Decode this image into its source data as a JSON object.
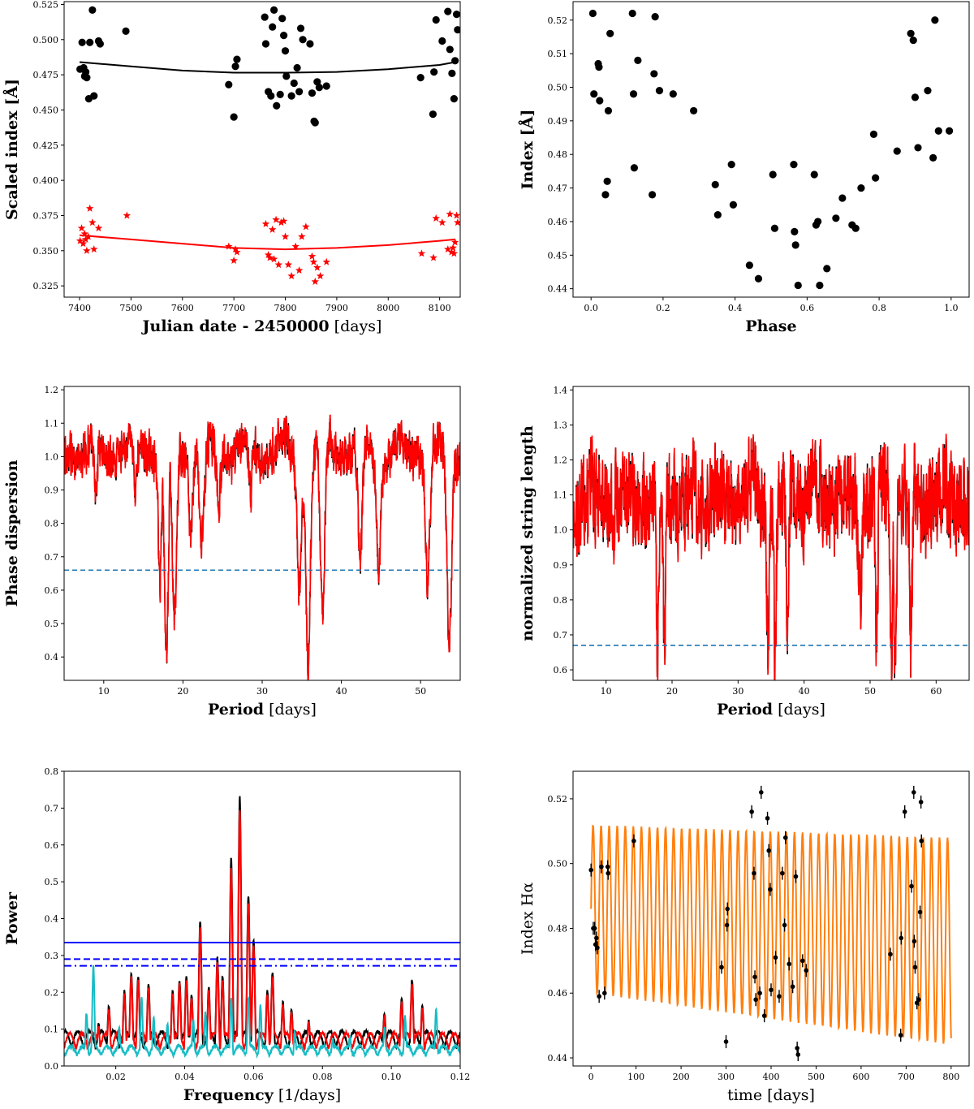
{
  "chart_data": [
    {
      "id": "p1",
      "type": "scatter",
      "xlabel_bold": "Julian date - 2450000",
      "xlabel_unit": "[days]",
      "ylabel": "Scaled index [Å]",
      "xlim": [
        7370,
        8140
      ],
      "ylim": [
        0.317,
        0.527
      ],
      "xticks": [
        7400,
        7500,
        7600,
        7700,
        7800,
        7900,
        8000,
        8100
      ],
      "yticks": [
        0.325,
        0.35,
        0.375,
        0.4,
        0.425,
        0.45,
        0.475,
        0.5,
        0.525
      ],
      "series": [
        {
          "name": "index_black",
          "color": "#000000",
          "marker": "circle",
          "x": [
            7401,
            7405,
            7408,
            7410,
            7412,
            7414,
            7418,
            7420,
            7425,
            7428,
            7437,
            7440,
            7490,
            7690,
            7700,
            7703,
            7706,
            7760,
            7762,
            7767,
            7772,
            7775,
            7778,
            7783,
            7790,
            7794,
            7797,
            7800,
            7802,
            7812,
            7817,
            7823,
            7827,
            7830,
            7834,
            7848,
            7852,
            7856,
            7858,
            7862,
            7866,
            7880,
            8063,
            8087,
            8089,
            8093,
            8105,
            8116,
            8120,
            8124,
            8128,
            8130,
            8133,
            8135
          ],
          "y": [
            0.479,
            0.498,
            0.48,
            0.474,
            0.477,
            0.473,
            0.458,
            0.498,
            0.521,
            0.46,
            0.499,
            0.497,
            0.506,
            0.468,
            0.445,
            0.481,
            0.486,
            0.516,
            0.497,
            0.463,
            0.46,
            0.509,
            0.521,
            0.453,
            0.461,
            0.515,
            0.503,
            0.492,
            0.474,
            0.46,
            0.469,
            0.48,
            0.463,
            0.508,
            0.5,
            0.497,
            0.462,
            0.442,
            0.441,
            0.47,
            0.466,
            0.467,
            0.473,
            0.447,
            0.477,
            0.514,
            0.499,
            0.52,
            0.493,
            0.476,
            0.458,
            0.485,
            0.518,
            0.507
          ]
        },
        {
          "name": "index_red",
          "color": "#ff0000",
          "marker": "star",
          "x": [
            7401,
            7404,
            7407,
            7410,
            7412,
            7414,
            7417,
            7420,
            7425,
            7428,
            7437,
            7492,
            7690,
            7700,
            7703,
            7706,
            7762,
            7767,
            7770,
            7775,
            7778,
            7782,
            7787,
            7792,
            7797,
            7800,
            7806,
            7812,
            7820,
            7827,
            7832,
            7840,
            7852,
            7855,
            7858,
            7862,
            7868,
            7880,
            8065,
            8088,
            8093,
            8105,
            8116,
            8120,
            8123,
            8126,
            8128,
            8130,
            8133,
            8135
          ],
          "y": [
            0.357,
            0.366,
            0.355,
            0.362,
            0.358,
            0.35,
            0.36,
            0.38,
            0.37,
            0.351,
            0.366,
            0.375,
            0.353,
            0.343,
            0.351,
            0.349,
            0.369,
            0.347,
            0.345,
            0.365,
            0.344,
            0.372,
            0.34,
            0.37,
            0.371,
            0.36,
            0.34,
            0.332,
            0.353,
            0.336,
            0.36,
            0.367,
            0.346,
            0.342,
            0.328,
            0.338,
            0.332,
            0.342,
            0.348,
            0.345,
            0.373,
            0.37,
            0.351,
            0.376,
            0.349,
            0.352,
            0.348,
            0.356,
            0.375,
            0.37
          ]
        },
        {
          "name": "fit_black",
          "color": "#000000",
          "line": true,
          "x": [
            7400,
            7500,
            7600,
            7700,
            7800,
            7900,
            8000,
            8100,
            8130
          ],
          "y": [
            0.484,
            0.481,
            0.478,
            0.4765,
            0.4765,
            0.477,
            0.479,
            0.482,
            0.484
          ]
        },
        {
          "name": "fit_red",
          "color": "#ff0000",
          "line": true,
          "x": [
            7400,
            7500,
            7600,
            7700,
            7800,
            7900,
            8000,
            8100,
            8130
          ],
          "y": [
            0.361,
            0.358,
            0.355,
            0.352,
            0.351,
            0.352,
            0.354,
            0.357,
            0.358
          ]
        }
      ]
    },
    {
      "id": "p2",
      "type": "scatter",
      "xlabel_bold": "Phase",
      "xlabel_unit": "",
      "ylabel": "Index [Å]",
      "xlim": [
        -0.05,
        1.05
      ],
      "ylim": [
        0.4375,
        0.5255
      ],
      "xticks": [
        0.0,
        0.2,
        0.4,
        0.6,
        0.8,
        1.0
      ],
      "yticks": [
        0.44,
        0.45,
        0.46,
        0.47,
        0.48,
        0.49,
        0.5,
        0.51,
        0.52
      ],
      "series": [
        {
          "name": "phase_points",
          "color": "#000000",
          "marker": "circle",
          "x": [
            0.005,
            0.008,
            0.02,
            0.022,
            0.024,
            0.04,
            0.045,
            0.048,
            0.053,
            0.115,
            0.118,
            0.12,
            0.13,
            0.17,
            0.175,
            0.178,
            0.19,
            0.228,
            0.285,
            0.345,
            0.352,
            0.39,
            0.395,
            0.44,
            0.465,
            0.505,
            0.51,
            0.563,
            0.565,
            0.568,
            0.575,
            0.62,
            0.625,
            0.63,
            0.635,
            0.655,
            0.68,
            0.698,
            0.725,
            0.735,
            0.75,
            0.785,
            0.79,
            0.85,
            0.888,
            0.895,
            0.9,
            0.908,
            0.935,
            0.95,
            0.955,
            0.965,
            0.995
          ],
          "y": [
            0.522,
            0.498,
            0.507,
            0.506,
            0.496,
            0.468,
            0.472,
            0.493,
            0.516,
            0.522,
            0.498,
            0.476,
            0.508,
            0.468,
            0.504,
            0.521,
            0.499,
            0.498,
            0.493,
            0.471,
            0.462,
            0.477,
            0.465,
            0.447,
            0.443,
            0.474,
            0.458,
            0.477,
            0.457,
            0.453,
            0.441,
            0.474,
            0.459,
            0.46,
            0.441,
            0.446,
            0.461,
            0.467,
            0.459,
            0.458,
            0.47,
            0.486,
            0.473,
            0.481,
            0.516,
            0.514,
            0.497,
            0.482,
            0.499,
            0.479,
            0.52,
            0.487,
            0.487
          ]
        }
      ]
    },
    {
      "id": "p3",
      "type": "line",
      "xlabel_bold": "Period",
      "xlabel_unit": "[days]",
      "ylabel": "Phase dispersion",
      "xlim": [
        5,
        55
      ],
      "ylim": [
        0.33,
        1.21
      ],
      "xticks": [
        10,
        20,
        30,
        40,
        50
      ],
      "yticks": [
        0.4,
        0.5,
        0.6,
        0.7,
        0.8,
        0.9,
        1.0,
        1.1,
        1.2
      ],
      "threshold": 0.66,
      "baseline": 1.02,
      "noise": 0.06,
      "dips": [
        [
          9.0,
          0.86,
          0.25
        ],
        [
          14.0,
          0.85,
          0.25
        ],
        [
          17.1,
          0.62,
          0.3
        ],
        [
          17.9,
          0.36,
          0.35
        ],
        [
          18.9,
          0.48,
          0.4
        ],
        [
          21.0,
          0.79,
          0.3
        ],
        [
          22.4,
          0.74,
          0.4
        ],
        [
          24.5,
          0.83,
          0.3
        ],
        [
          28.5,
          0.86,
          0.3
        ],
        [
          34.7,
          0.63,
          0.45
        ],
        [
          35.8,
          0.4,
          0.4
        ],
        [
          37.6,
          0.5,
          0.4
        ],
        [
          42.4,
          0.65,
          0.35
        ],
        [
          44.7,
          0.71,
          0.4
        ],
        [
          50.9,
          0.64,
          0.4
        ],
        [
          53.6,
          0.43,
          0.4
        ]
      ],
      "series": [
        {
          "name": "dispersion_black",
          "color": "#000000"
        },
        {
          "name": "dispersion_red",
          "color": "#ff0000"
        }
      ],
      "threshold_color": "#1f77b4"
    },
    {
      "id": "p4",
      "type": "line",
      "xlabel_bold": "Period",
      "xlabel_unit": "[days]",
      "ylabel": "normalized string length",
      "xlim": [
        5,
        65
      ],
      "ylim": [
        0.57,
        1.41
      ],
      "xticks": [
        10,
        20,
        30,
        40,
        50,
        60
      ],
      "yticks": [
        0.6,
        0.7,
        0.8,
        0.9,
        1.0,
        1.1,
        1.2,
        1.3,
        1.4
      ],
      "threshold": 0.67,
      "baseline": 1.09,
      "noise": 0.13,
      "dips": [
        [
          17.8,
          0.61,
          0.25
        ],
        [
          18.8,
          0.65,
          0.25
        ],
        [
          34.5,
          0.7,
          0.25
        ],
        [
          35.6,
          0.63,
          0.25
        ],
        [
          37.5,
          0.65,
          0.25
        ],
        [
          48.5,
          0.82,
          0.35
        ],
        [
          51.0,
          0.68,
          0.25
        ],
        [
          53.2,
          0.63,
          0.25
        ],
        [
          53.8,
          0.66,
          0.25
        ],
        [
          56.2,
          0.64,
          0.25
        ]
      ],
      "series": [
        {
          "name": "string_black",
          "color": "#000000"
        },
        {
          "name": "string_red",
          "color": "#ff0000"
        }
      ],
      "threshold_color": "#1f77b4"
    },
    {
      "id": "p5",
      "type": "line",
      "xlabel_bold": "Frequency",
      "xlabel_unit": "[1/days]",
      "ylabel": "Power",
      "xlim": [
        0.005,
        0.12
      ],
      "ylim": [
        0.0,
        0.8
      ],
      "xticks": [
        0.02,
        0.04,
        0.06,
        0.08,
        0.1,
        0.12
      ],
      "yticks": [
        0.0,
        0.1,
        0.2,
        0.3,
        0.4,
        0.5,
        0.6,
        0.7,
        0.8
      ],
      "fap_levels": [
        0.335,
        0.29,
        0.272
      ],
      "fap_color": "#0000ff",
      "peaks": [
        [
          0.0445,
          0.39
        ],
        [
          0.0495,
          0.29
        ],
        [
          0.0535,
          0.56
        ],
        [
          0.056,
          0.73
        ],
        [
          0.0585,
          0.46
        ],
        [
          0.06,
          0.34
        ],
        [
          0.047,
          0.21
        ],
        [
          0.051,
          0.24
        ],
        [
          0.0405,
          0.24
        ],
        [
          0.0385,
          0.23
        ],
        [
          0.0265,
          0.24
        ],
        [
          0.0245,
          0.25
        ],
        [
          0.0295,
          0.22
        ],
        [
          0.064,
          0.2
        ],
        [
          0.0655,
          0.25
        ],
        [
          0.0225,
          0.2
        ],
        [
          0.042,
          0.19
        ],
        [
          0.0365,
          0.2
        ],
        [
          0.0685,
          0.17
        ],
        [
          0.071,
          0.15
        ],
        [
          0.106,
          0.23
        ],
        [
          0.103,
          0.18
        ],
        [
          0.098,
          0.14
        ],
        [
          0.109,
          0.16
        ],
        [
          0.015,
          0.11
        ],
        [
          0.018,
          0.16
        ],
        [
          0.076,
          0.12
        ]
      ],
      "window_peaks": [
        [
          0.0135,
          0.27
        ],
        [
          0.0115,
          0.14
        ],
        [
          0.0275,
          0.18
        ],
        [
          0.031,
          0.13
        ],
        [
          0.0535,
          0.18
        ],
        [
          0.0585,
          0.18
        ],
        [
          0.046,
          0.14
        ],
        [
          0.0425,
          0.12
        ],
        [
          0.062,
          0.16
        ],
        [
          0.104,
          0.13
        ],
        [
          0.113,
          0.15
        ],
        [
          0.098,
          0.1
        ],
        [
          0.088,
          0.08
        ],
        [
          0.072,
          0.09
        ],
        [
          0.021,
          0.1
        ],
        [
          0.083,
          0.07
        ],
        [
          0.035,
          0.11
        ]
      ],
      "series": [
        {
          "name": "power_black",
          "color": "#000000"
        },
        {
          "name": "power_red",
          "color": "#ff0000"
        },
        {
          "name": "window_function",
          "color": "#17bcc4"
        }
      ]
    },
    {
      "id": "p6",
      "type": "line",
      "xlabel_bold": "",
      "xlabel_unit": "time [days]",
      "ylabel": "Index Hα",
      "xlim": [
        -40,
        840
      ],
      "ylim": [
        0.4375,
        0.5285
      ],
      "xticks": [
        0,
        100,
        200,
        300,
        400,
        500,
        600,
        700,
        800
      ],
      "yticks": [
        0.44,
        0.46,
        0.48,
        0.5,
        0.52
      ],
      "model": {
        "period": 17.9,
        "center_start": 0.486,
        "center_end": 0.476,
        "amp_start": 0.026,
        "amp_end": 0.032,
        "t_end": 800,
        "color": "#ff7f0e"
      },
      "series": [
        {
          "name": "halpha_points",
          "color": "#000000",
          "marker": "errorbar",
          "x": [
            0,
            5,
            8,
            10,
            12,
            14,
            18,
            23,
            30,
            37,
            38,
            95,
            290,
            300,
            302,
            303,
            357,
            362,
            364,
            366,
            375,
            378,
            385,
            392,
            395,
            398,
            400,
            410,
            418,
            425,
            430,
            432,
            440,
            448,
            455,
            458,
            460,
            470,
            478,
            665,
            688,
            689,
            697,
            712,
            717,
            718,
            720,
            724,
            728,
            731,
            733,
            734
          ],
          "y": [
            0.498,
            0.48,
            0.48,
            0.475,
            0.477,
            0.474,
            0.459,
            0.499,
            0.46,
            0.499,
            0.497,
            0.507,
            0.468,
            0.445,
            0.481,
            0.486,
            0.516,
            0.497,
            0.465,
            0.458,
            0.46,
            0.522,
            0.453,
            0.514,
            0.504,
            0.492,
            0.461,
            0.471,
            0.459,
            0.497,
            0.481,
            0.508,
            0.469,
            0.462,
            0.496,
            0.443,
            0.441,
            0.47,
            0.467,
            0.472,
            0.447,
            0.477,
            0.516,
            0.493,
            0.522,
            0.476,
            0.468,
            0.457,
            0.458,
            0.485,
            0.519,
            0.507
          ]
        }
      ]
    }
  ]
}
